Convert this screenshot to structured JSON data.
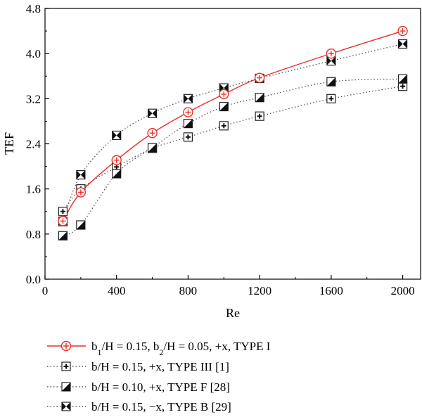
{
  "chart_data": {
    "type": "line",
    "xlabel": "Re",
    "ylabel": "TEF",
    "xlim": [
      0,
      2100
    ],
    "ylim": [
      0,
      4.8
    ],
    "x_ticks": [
      "0",
      "400",
      "800",
      "1200",
      "1600",
      "2000"
    ],
    "y_ticks": [
      "0.0",
      "0.8",
      "1.6",
      "2.4",
      "3.2",
      "4.0",
      "4.8"
    ],
    "grid": false,
    "legend_position": "below",
    "series": [
      {
        "name": "b1/H = 0.15, b2/H = 0.05, +x, TYPE I",
        "label_parts": {
          "p1": "b",
          "s1": "1",
          "p2": "/H = 0.15, b",
          "s2": "2",
          "p3": "/H = 0.05, +x, TYPE I"
        },
        "marker": "circle-plus",
        "line": "solid",
        "color": "#e8302a",
        "x": [
          100,
          200,
          400,
          600,
          800,
          1000,
          1200,
          1600,
          2000
        ],
        "y": [
          1.03,
          1.54,
          2.11,
          2.59,
          2.96,
          3.28,
          3.57,
          4.0,
          4.4
        ]
      },
      {
        "name": "b/H = 0.15, +x, TYPE III [1]",
        "marker": "square-plus",
        "line": "dotted",
        "color": "#333333",
        "x": [
          100,
          200,
          400,
          600,
          800,
          1000,
          1200,
          1600,
          2000
        ],
        "y": [
          1.2,
          1.6,
          1.99,
          2.32,
          2.52,
          2.72,
          2.89,
          3.2,
          3.42
        ]
      },
      {
        "name": "b/H = 0.10, +x, TYPE F [28]",
        "marker": "square-half",
        "line": "dotted",
        "color": "#333333",
        "x": [
          100,
          200,
          400,
          600,
          800,
          1000,
          1200,
          1600,
          2000
        ],
        "y": [
          0.77,
          0.96,
          1.87,
          2.33,
          2.76,
          3.06,
          3.22,
          3.5,
          3.55
        ]
      },
      {
        "name": "b/H = 0.15, −x, TYPE B [29]",
        "marker": "square-bowtie",
        "line": "dotted",
        "color": "#333333",
        "x": [
          100,
          200,
          400,
          600,
          800,
          1000,
          1200,
          1600,
          2000
        ],
        "y": [
          1.02,
          1.85,
          2.55,
          2.94,
          3.2,
          3.39,
          3.56,
          3.87,
          4.17
        ]
      }
    ]
  }
}
